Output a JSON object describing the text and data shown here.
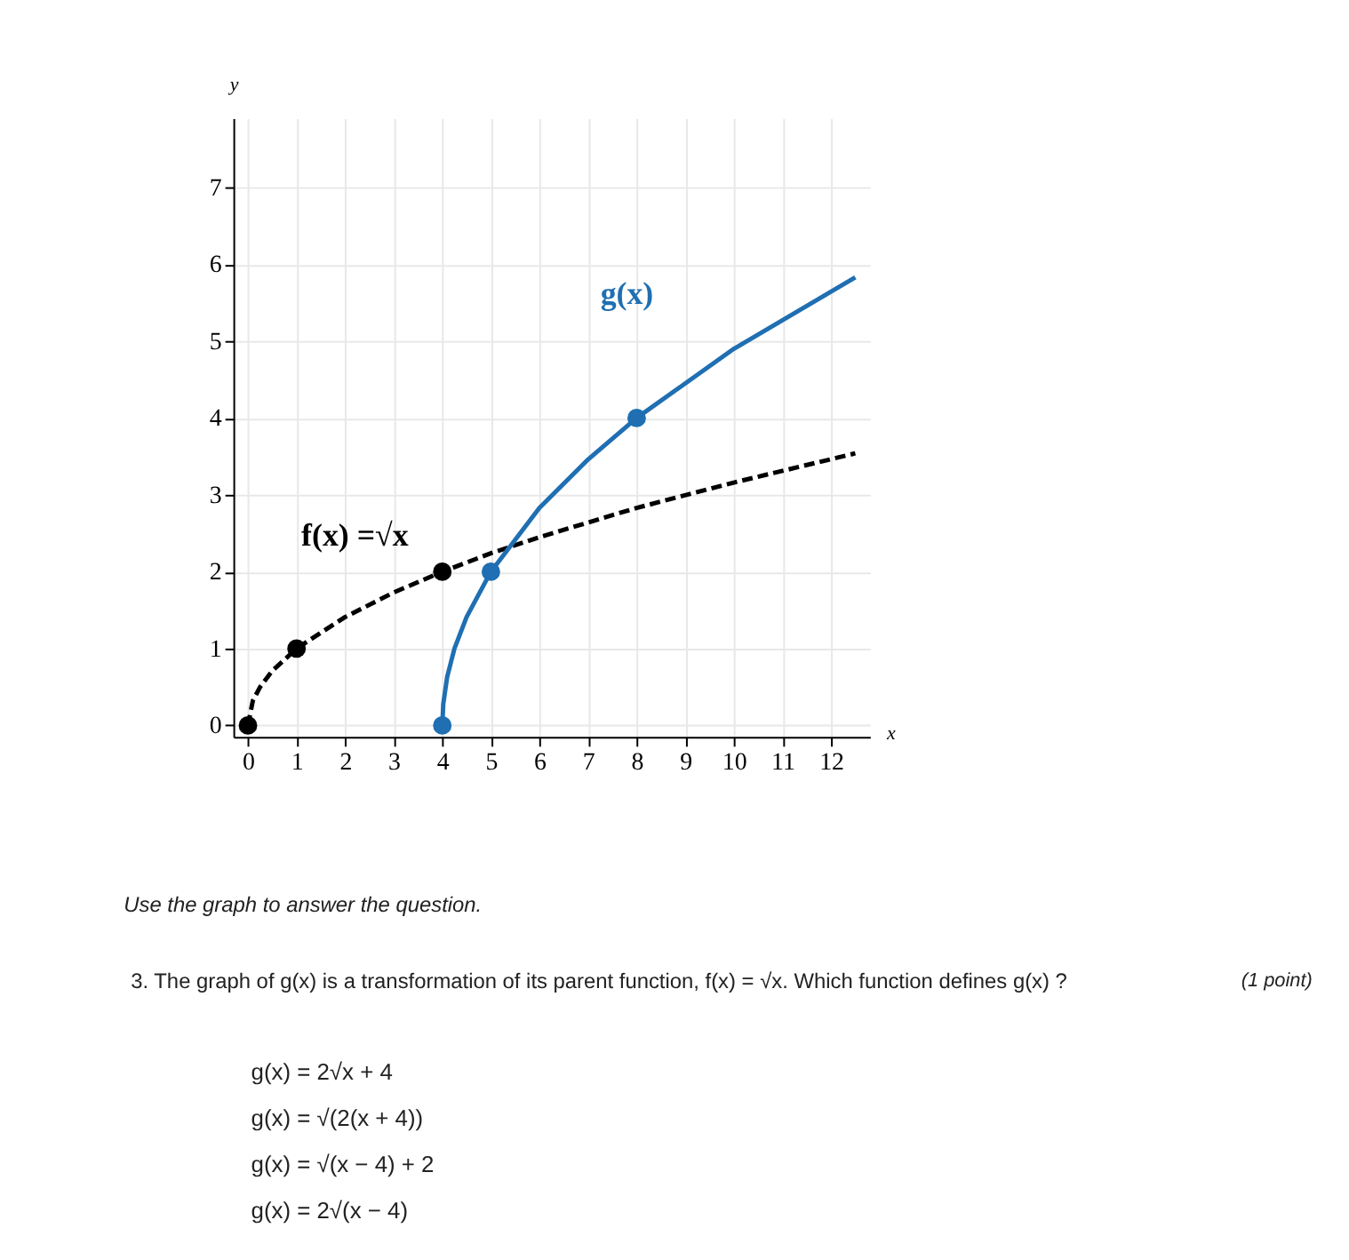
{
  "chart_data": {
    "type": "line",
    "xlabel": "x",
    "ylabel": "y",
    "xlim": [
      -0.3,
      12.8
    ],
    "ylim": [
      -0.15,
      7.9
    ],
    "xticks": [
      0,
      1,
      2,
      3,
      4,
      5,
      6,
      7,
      8,
      9,
      10,
      11,
      12
    ],
    "yticks": [
      0,
      1,
      2,
      3,
      4,
      5,
      6,
      7
    ],
    "grid": true,
    "series": [
      {
        "name": "f(x) =√x",
        "line_style": "dashed",
        "color": "#000000",
        "x": [
          0,
          0.1,
          0.25,
          0.5,
          1,
          2,
          3,
          4,
          5,
          6,
          8,
          10,
          12.5
        ],
        "values": [
          0,
          0.32,
          0.5,
          0.71,
          1,
          1.41,
          1.73,
          2,
          2.24,
          2.45,
          2.83,
          3.16,
          3.54
        ]
      },
      {
        "type": "scatter",
        "marker": "circle",
        "color": "#000000",
        "x": [
          0,
          1,
          4
        ],
        "values": [
          0,
          1,
          2
        ]
      },
      {
        "name": "g(x)",
        "line_style": "solid",
        "color": "#1f6fb2",
        "x": [
          4,
          4.02,
          4.1,
          4.25,
          4.5,
          5,
          6,
          7,
          8,
          10,
          12.5
        ],
        "values": [
          0,
          0.28,
          0.63,
          1,
          1.41,
          2,
          2.83,
          3.46,
          4,
          4.9,
          5.83
        ]
      },
      {
        "type": "scatter",
        "marker": "circle",
        "color": "#1f6fb2",
        "x": [
          4,
          5,
          8
        ],
        "values": [
          0,
          2,
          4
        ]
      }
    ],
    "annotations": [
      "Use the graph to answer the question.",
      "3. The graph of g(x) is a transformation of its parent function, f(x) = √x. Which function defines g(x) ?",
      "(1 point)",
      "g(x) = 2√x + 4",
      "g(x) = √(2(x + 4))",
      "g(x) = √(x − 4) + 2",
      "g(x) = 2√(x − 4)"
    ]
  }
}
